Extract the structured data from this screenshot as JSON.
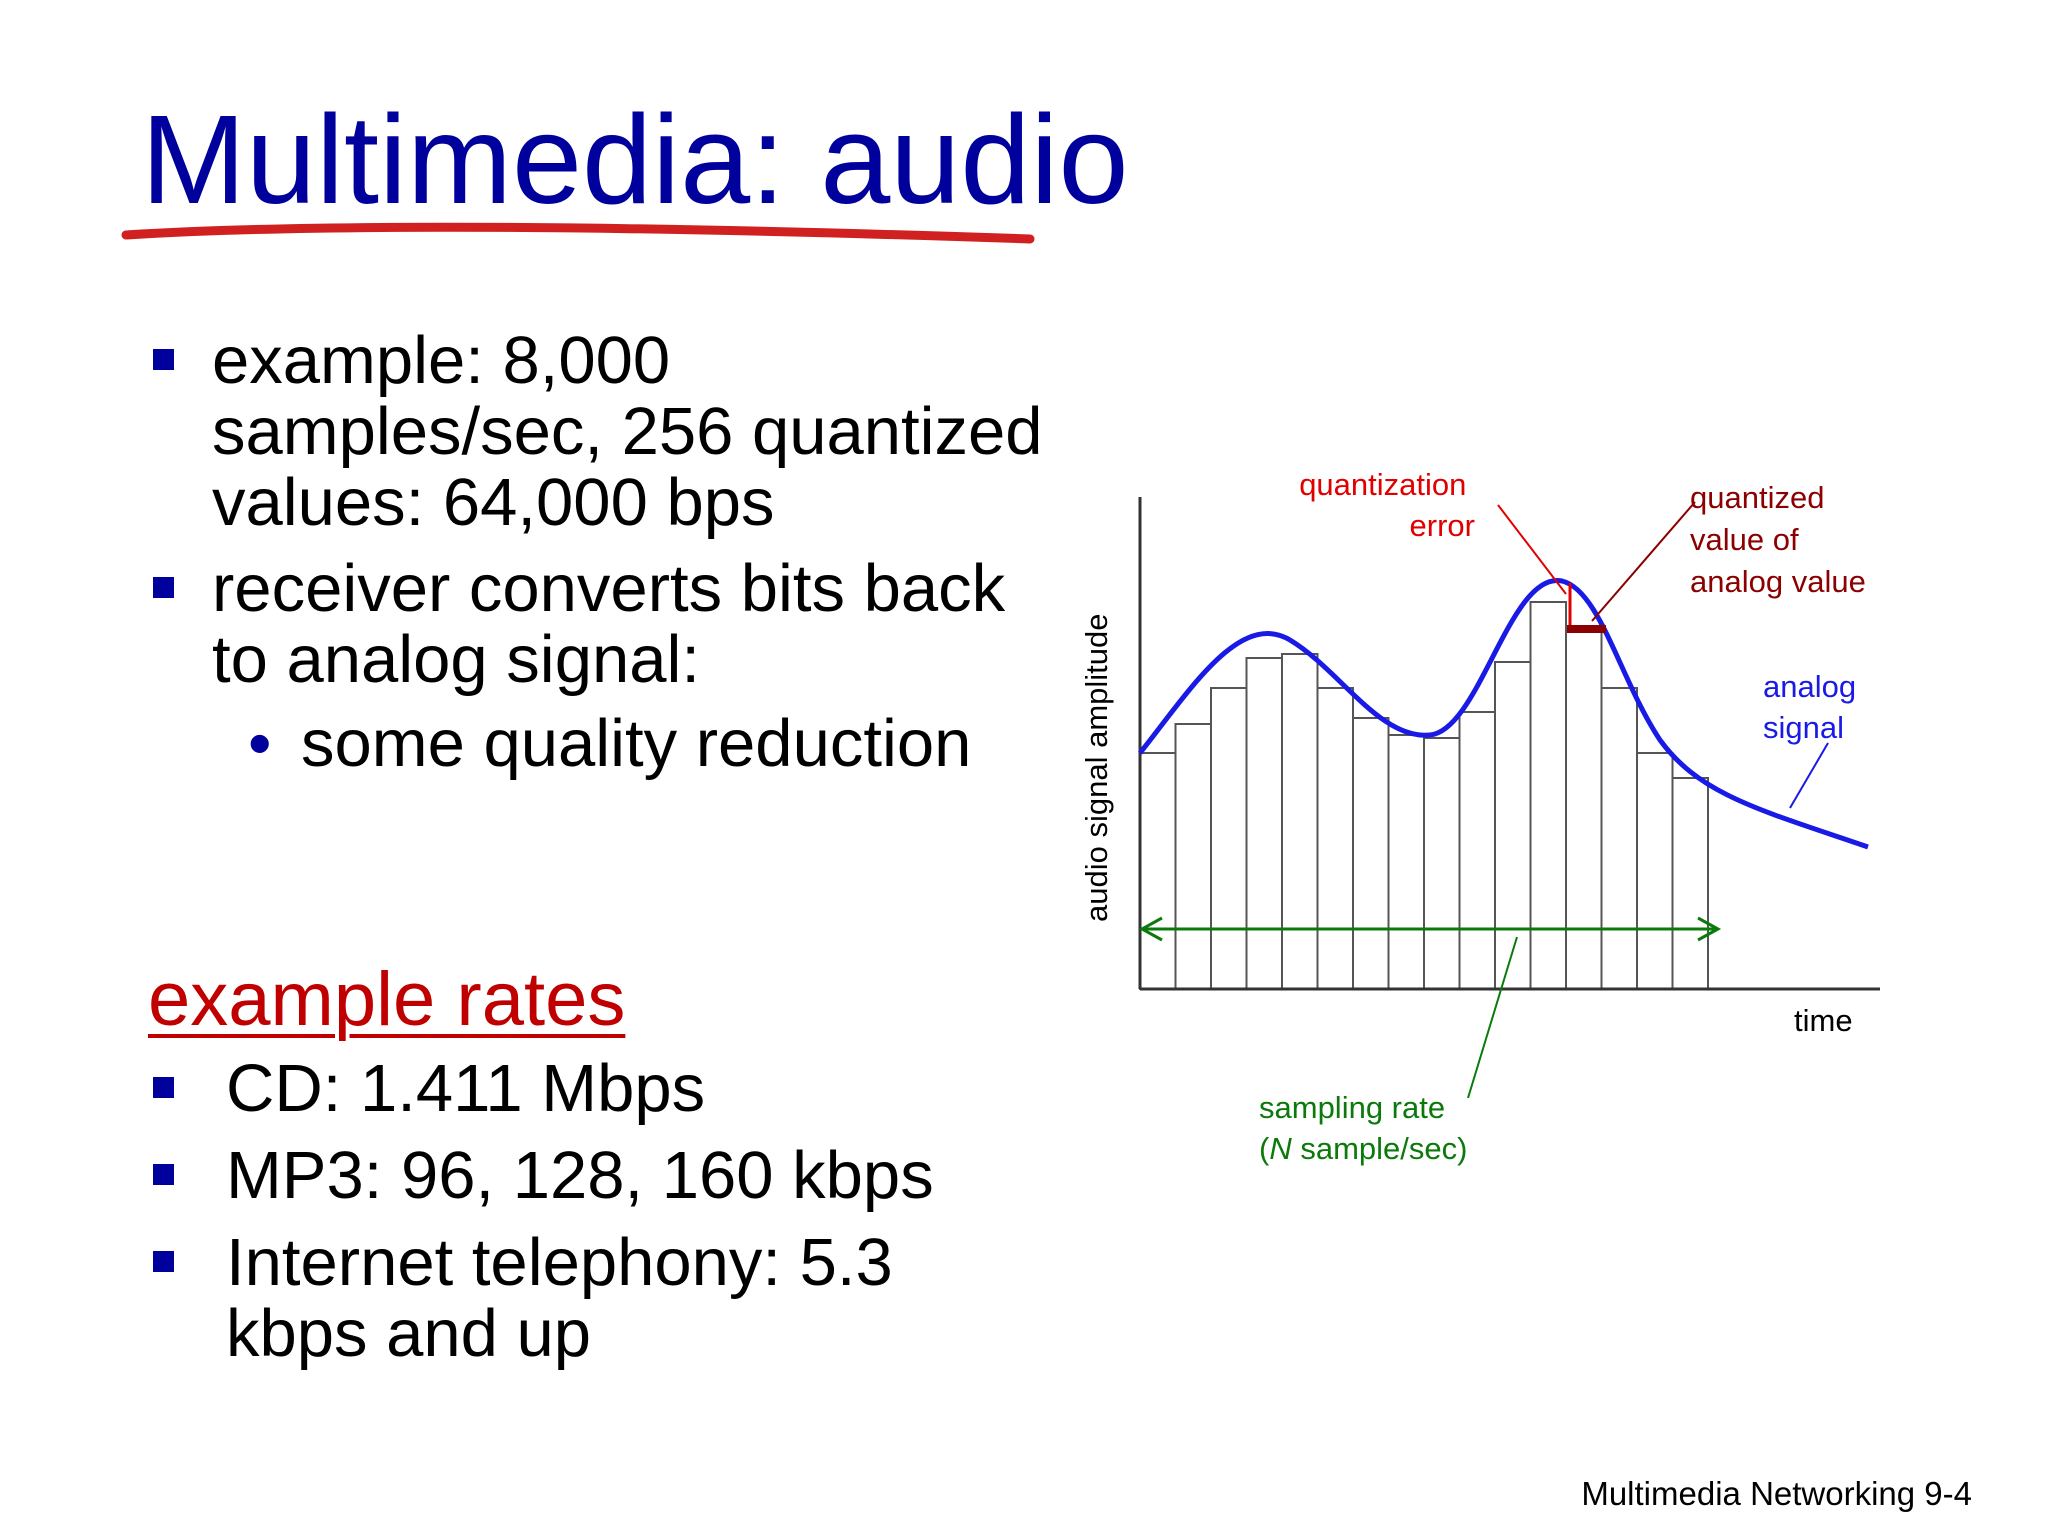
{
  "slide": {
    "title": "Multimedia: audio",
    "bullets": [
      "example: 8,000 samples/sec, 256 quantized values:  64,000 bps",
      "receiver converts bits back to analog signal:"
    ],
    "sub_bullet": "some quality reduction",
    "sub_bullet_marker": "•",
    "rates_heading": "example rates",
    "rates": [
      "CD: 1.411 Mbps",
      "MP3: 96, 128, 160 kbps",
      "Internet telephony: 5.3 kbps and up"
    ],
    "footer": "Multimedia Networking  9-4"
  },
  "diagram": {
    "y_axis_label": "audio signal amplitude",
    "x_axis_label": "time",
    "quantization_error_label": [
      "quantization",
      "error"
    ],
    "quantized_value_label": [
      "quantized",
      "value of",
      "analog value"
    ],
    "analog_signal_label": [
      "analog",
      "signal"
    ],
    "sampling_rate_label": [
      "sampling rate",
      "(N sample/sec)"
    ],
    "sampling_rate_italic": "N",
    "colors": {
      "title": "#00009c",
      "heading": "#c00000",
      "quantization_error": "#e00000",
      "quantized_value": "#8b0000",
      "analog_signal": "#1a1ae6",
      "sampling_rate": "#0b7a0b",
      "bars": "#555555"
    }
  }
}
